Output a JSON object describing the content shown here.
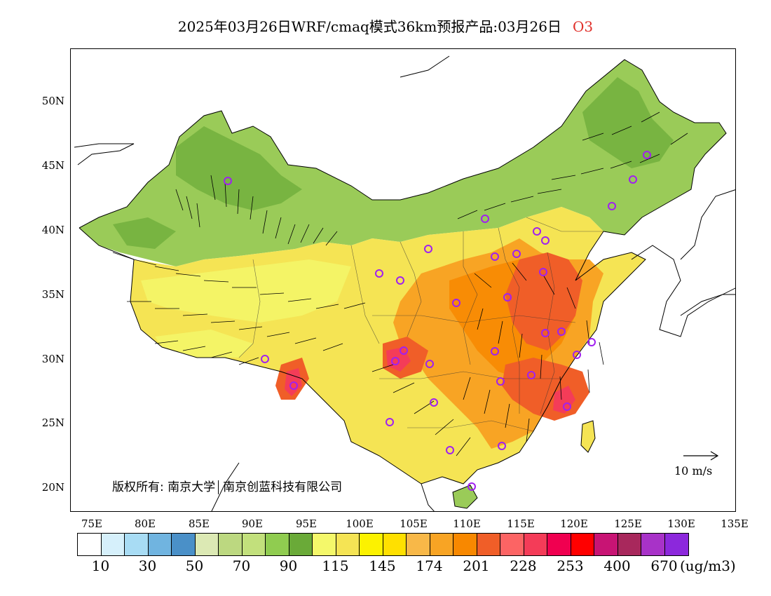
{
  "title": {
    "main": "2025年03月26日WRF/cmaq模式36km预报产品:03月26日",
    "species": "O3"
  },
  "map": {
    "lat_labels": [
      "50N",
      "45N",
      "40N",
      "35N",
      "30N",
      "25N",
      "20N"
    ],
    "lon_labels": [
      "75E",
      "80E",
      "85E",
      "90E",
      "95E",
      "100E",
      "105E",
      "110E",
      "115E",
      "120E",
      "125E",
      "130E",
      "135E"
    ],
    "copyright_label": "版权所有:",
    "copyright_org1": "南京大学",
    "copyright_org2": "南京创蓝科技有限公司",
    "wind_reference": "10 m/s",
    "colors": {
      "border": "#000000",
      "station_marker": "#a020f0",
      "wind_arrow": "#000000"
    }
  },
  "colorbar": {
    "colors": [
      "#ffffff",
      "#d6f0fb",
      "#a8dcf4",
      "#70b4e0",
      "#4a90c8",
      "#dce9b4",
      "#bcd880",
      "#c2e07c",
      "#90cc50",
      "#6aaa38",
      "#f4f86a",
      "#f5e454",
      "#fcf200",
      "#ffe000",
      "#f8b848",
      "#f8a424",
      "#f88800",
      "#f05e28",
      "#fc6464",
      "#f43c58",
      "#f00050",
      "#ff0000",
      "#c81474",
      "#a8285c",
      "#a832c8",
      "#8c28dc"
    ],
    "tick_labels": [
      "10",
      "30",
      "50",
      "70",
      "90",
      "115",
      "145",
      "174",
      "201",
      "228",
      "253",
      "400",
      "670"
    ],
    "unit": "(ug/m3)"
  }
}
